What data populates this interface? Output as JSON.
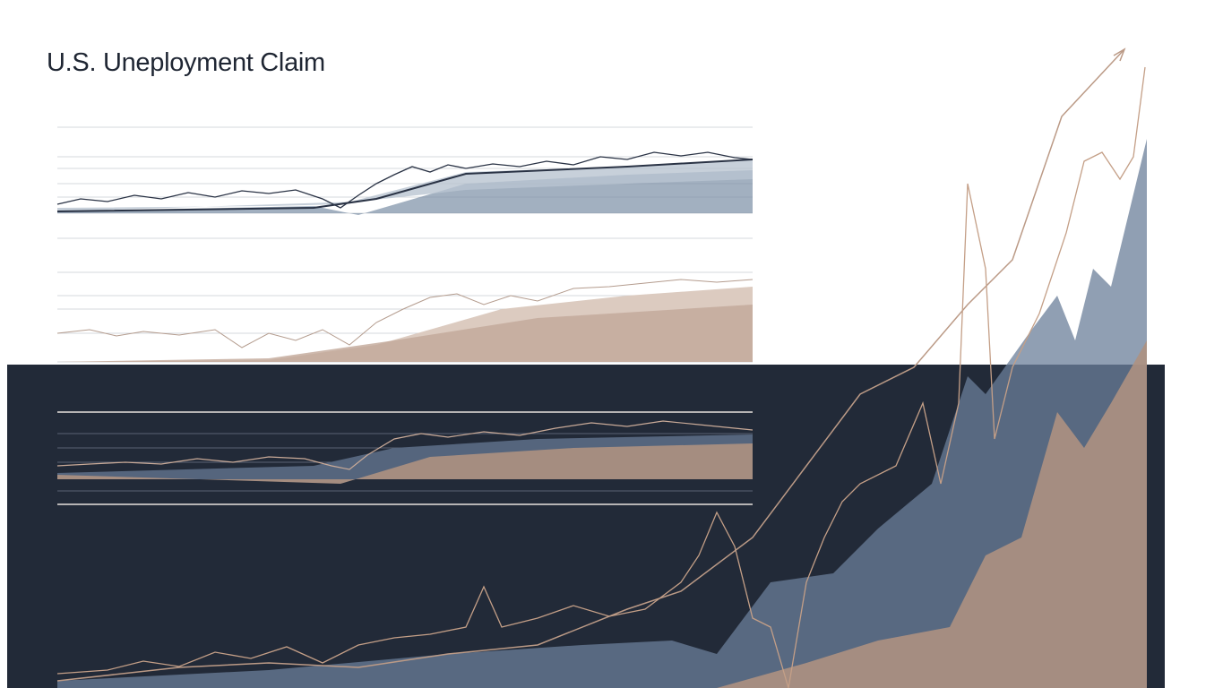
{
  "header": {
    "title": "U.S. Uneployment Claim"
  }
}
